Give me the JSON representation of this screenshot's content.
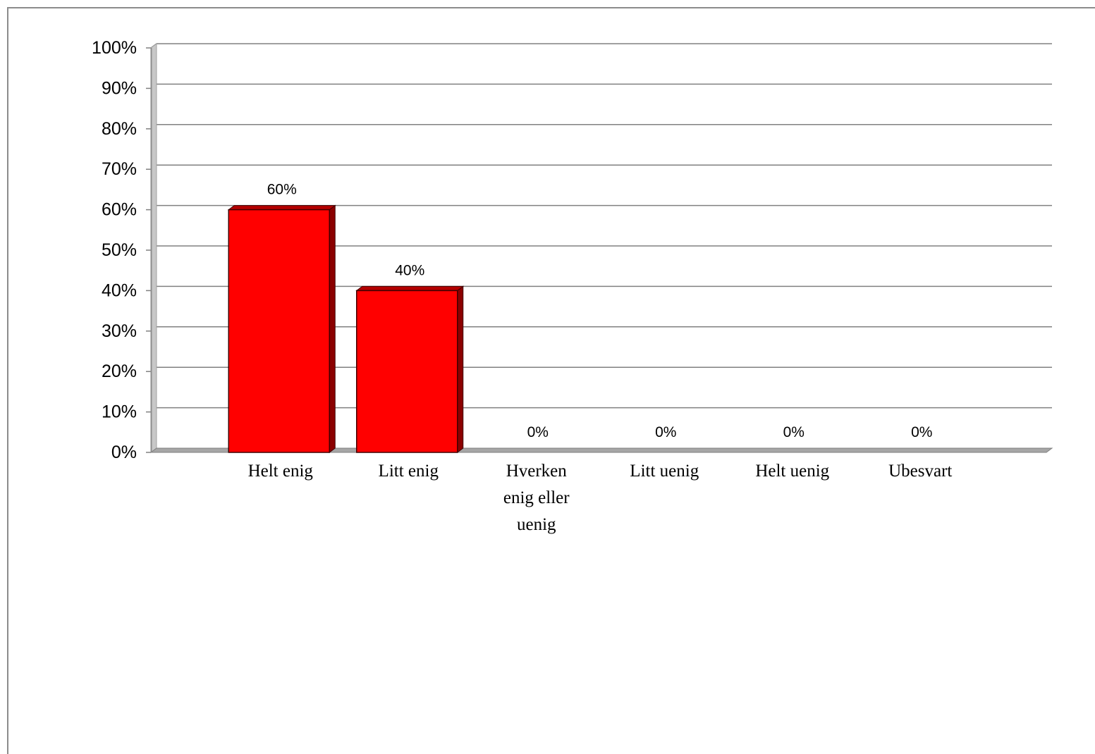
{
  "chart_data": {
    "type": "bar",
    "style": "3d",
    "categories": [
      "Helt enig",
      "Litt enig",
      "Hverken enig eller uenig",
      "Litt uenig",
      "Helt uenig",
      "Ubesvart"
    ],
    "category_label_lines": [
      [
        "Helt enig"
      ],
      [
        "Litt enig"
      ],
      [
        "Hverken",
        "enig eller",
        "uenig"
      ],
      [
        "Litt uenig"
      ],
      [
        "Helt uenig"
      ],
      [
        "Ubesvart"
      ]
    ],
    "values": [
      60,
      40,
      0,
      0,
      0,
      0
    ],
    "data_labels": [
      "60%",
      "40%",
      "0%",
      "0%",
      "0%",
      "0%"
    ],
    "y_ticks": [
      "0%",
      "10%",
      "20%",
      "30%",
      "40%",
      "50%",
      "60%",
      "70%",
      "80%",
      "90%",
      "100%"
    ],
    "ylim": [
      0,
      100
    ],
    "y_unit": "%",
    "grid": true,
    "legend": "none",
    "title": "",
    "xlabel": "",
    "ylabel": "",
    "colors": {
      "bar_front": "#ff0000",
      "bar_top": "#b30000",
      "bar_side": "#8b0000",
      "bar_outline": "#400000",
      "gridline": "#808080",
      "floor": "#a6a6a6",
      "wall": "#a0a0a0"
    }
  }
}
